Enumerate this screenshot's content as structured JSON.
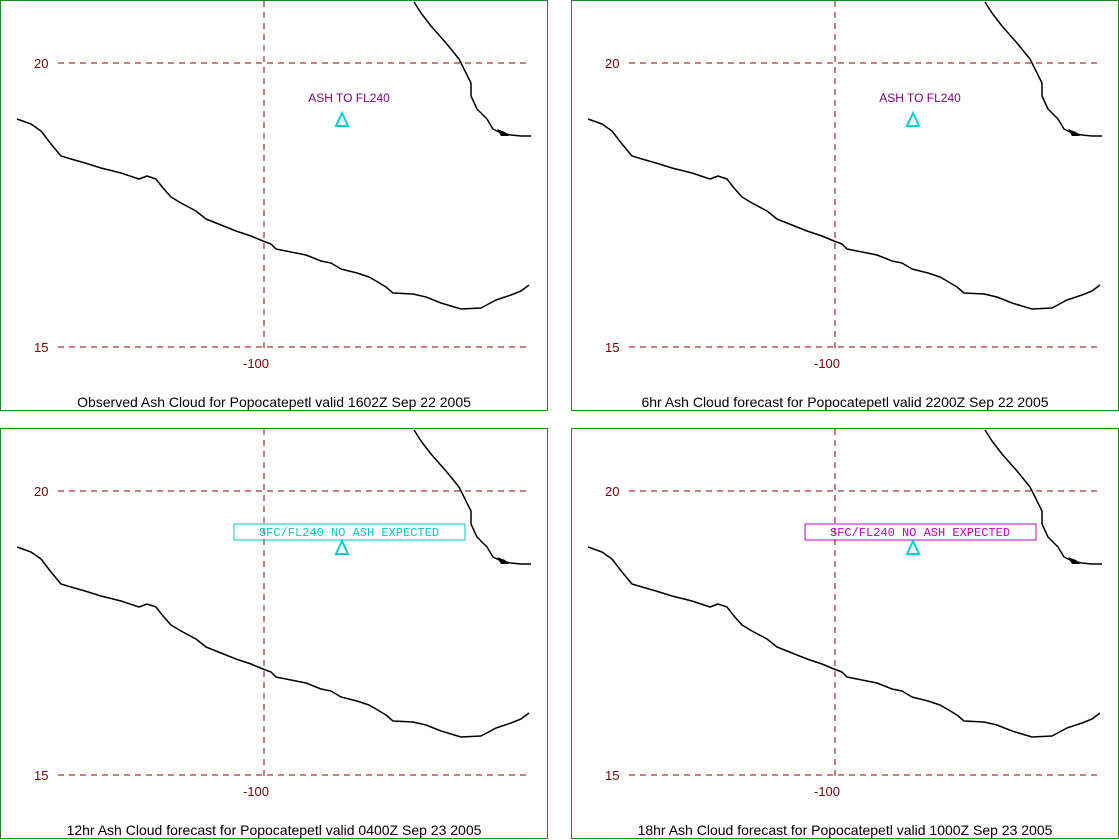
{
  "lat_labels": [
    "20",
    "15"
  ],
  "lon_label": "-100",
  "grid_color": "#8b0000",
  "coast_color": "#000000",
  "volcano_color": "#00d0d0",
  "panels": [
    {
      "caption": "Observed Ash Cloud for Popocatepetl valid 1602Z Sep 22 2005",
      "annotation": "ASH TO FL240",
      "annotation_style": "plain",
      "annotation_color": "#800080"
    },
    {
      "caption": "6hr Ash Cloud forecast for Popocatepetl valid 2200Z Sep 22 2005",
      "annotation": "ASH TO FL240",
      "annotation_style": "plain",
      "annotation_color": "#800080"
    },
    {
      "caption": "12hr Ash Cloud forecast for Popocatepetl valid 0400Z Sep 23 2005",
      "annotation": "SFC/FL240 NO ASH EXPECTED",
      "annotation_style": "boxed",
      "annotation_color": "#00c8c8"
    },
    {
      "caption": "18hr Ash Cloud forecast for Popocatepetl valid 1000Z Sep 23 2005",
      "annotation": "SFC/FL240 NO ASH EXPECTED",
      "annotation_style": "boxed",
      "annotation_color": "#c000c0"
    }
  ]
}
